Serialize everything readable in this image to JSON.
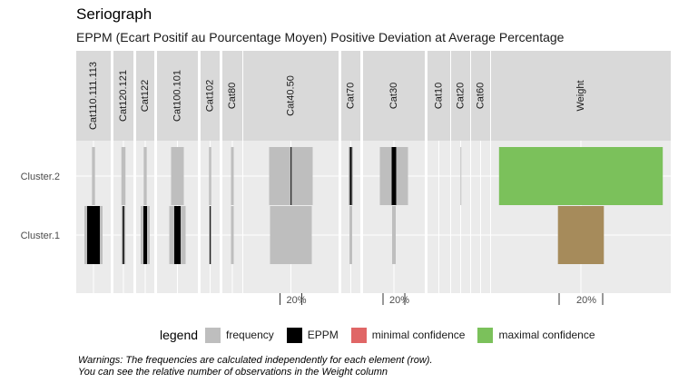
{
  "title": "Seriograph",
  "subtitle": "EPPM (Ecart Positif au Pourcentage Moyen) Positive Deviation at Average Percentage",
  "colors": {
    "frequency": "#BEBEBE",
    "eppm": "#000000",
    "minimal_confidence": "#E06666",
    "maximal_confidence": "#7BC15B",
    "weight_cluster1": "#A68B5B",
    "panel_background": "#EBEBEB",
    "strip_background": "#D9D9D9"
  },
  "legend": {
    "title": "legend",
    "items": [
      {
        "label": "frequency",
        "color": "#BEBEBE"
      },
      {
        "label": "EPPM",
        "color": "#000000"
      },
      {
        "label": "minimal confidence",
        "color": "#E06666"
      },
      {
        "label": "maximal confidence",
        "color": "#7BC15B"
      }
    ]
  },
  "warnings": [
    "Warnings: The frequencies are calculated independently for each element (row).",
    "You can see the relative number of observations in the Weight column"
  ],
  "chart_data": {
    "type": "bar",
    "rows": [
      "Cluster.2",
      "Cluster.1"
    ],
    "groups": [
      {
        "label": "Cat110.111.113",
        "columns": [
          {
            "Cluster.2": {
              "frequency": 0.033,
              "eppm": 0
            },
            "Cluster.1": {
              "frequency": 0.2,
              "eppm": 0.14
            }
          }
        ]
      },
      {
        "label": "Cat120.121",
        "columns": [
          {
            "Cluster.2": {
              "frequency": 0.045,
              "eppm": 0
            },
            "Cluster.1": {
              "frequency": 0.045,
              "eppm": 0.015
            }
          }
        ]
      },
      {
        "label": "Cat122",
        "columns": [
          {
            "Cluster.2": {
              "frequency": 0.033,
              "eppm": 0
            },
            "Cluster.1": {
              "frequency": 0.1,
              "eppm": 0.04
            }
          }
        ]
      },
      {
        "label": "Cat100.101",
        "columns": [
          {
            "Cluster.2": {
              "frequency": 0.14,
              "eppm": 0
            },
            "Cluster.1": {
              "frequency": 0.18,
              "eppm": 0.07
            }
          }
        ]
      },
      {
        "label": "Cat102",
        "columns": [
          {
            "Cluster.2": {
              "frequency": 0.025,
              "eppm": 0
            },
            "Cluster.1": {
              "frequency": 0.025,
              "eppm": 0.007
            }
          }
        ]
      },
      {
        "label": "Cat80",
        "columns": [
          {
            "Cluster.2": {
              "frequency": 0.03,
              "eppm": 0
            },
            "Cluster.1": {
              "frequency": 0.03,
              "eppm": 0
            }
          }
        ]
      },
      {
        "label": "Cat40.50",
        "scale": {
          "ticks": [
            "20%"
          ]
        },
        "columns": [
          {
            "Cluster.2": {
              "frequency": 0.48,
              "eppm": 0.005
            },
            "Cluster.1": {
              "frequency": 0.46,
              "eppm": 0
            }
          }
        ]
      },
      {
        "label": "Cat70",
        "columns": [
          {
            "Cluster.2": {
              "frequency": 0.05,
              "eppm": 0.02
            },
            "Cluster.1": {
              "frequency": 0.03,
              "eppm": 0
            }
          }
        ]
      },
      {
        "label": "Cat30",
        "scale": {
          "ticks": [
            "20%"
          ]
        },
        "columns": [
          {
            "Cluster.2": {
              "frequency": 0.31,
              "eppm": 0.05
            },
            "Cluster.1": {
              "frequency": 0.04,
              "eppm": 0
            }
          }
        ]
      },
      {
        "label": "Cat10",
        "columns": [
          {
            "Cluster.2": {
              "frequency": 0,
              "eppm": 0
            },
            "Cluster.1": {
              "frequency": 0,
              "eppm": 0
            }
          }
        ]
      },
      {
        "label": "Cat20",
        "columns": [
          {
            "Cluster.2": {
              "frequency": 0.005,
              "eppm": 0
            },
            "Cluster.1": {
              "frequency": 0,
              "eppm": 0
            }
          }
        ]
      },
      {
        "label": "Cat60",
        "columns": [
          {
            "Cluster.2": {
              "frequency": 0,
              "eppm": 0
            },
            "Cluster.1": {
              "frequency": 0,
              "eppm": 0
            }
          }
        ]
      },
      {
        "label": "Weight",
        "scale": {
          "ticks": [
            "20%"
          ]
        },
        "columns": [
          {
            "Cluster.2": {
              "weight": 0.82,
              "confidence": "maximal"
            },
            "Cluster.1": {
              "weight": 0.23
            }
          }
        ]
      }
    ]
  }
}
